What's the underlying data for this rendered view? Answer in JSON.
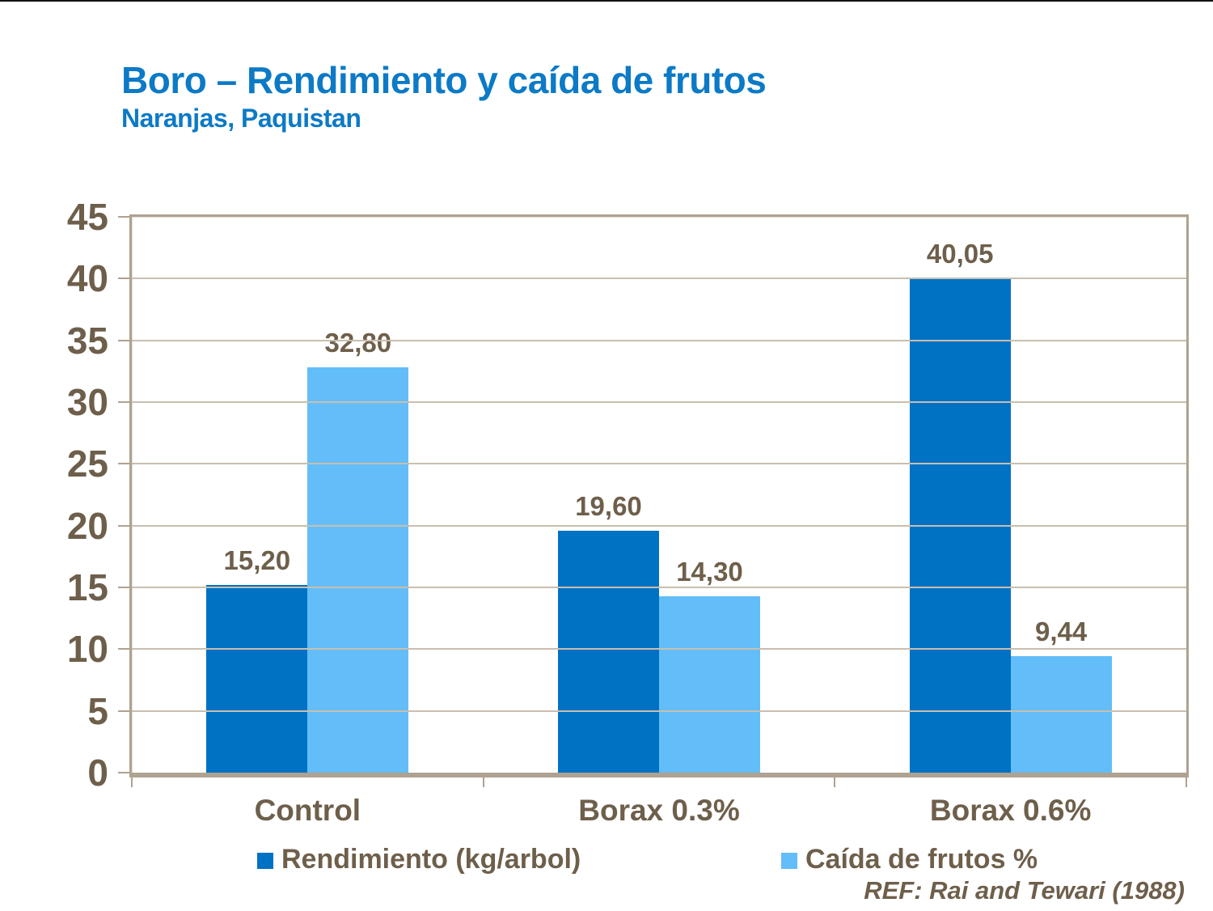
{
  "header": {
    "title": "Boro – Rendimiento y caída de frutos",
    "subtitle": "Naranjas, Paquistan"
  },
  "footer": {
    "reference": "REF: Rai and Tewari (1988)"
  },
  "colors": {
    "title_blue": "#0c7ac6",
    "series1_dark_blue": "#0072c4",
    "series2_light_blue": "#63bdf8",
    "text_brown": "#6e5f4b",
    "axis_line": "#afa291",
    "gridline": "#c9beaf",
    "top_rule": "#111111"
  },
  "chart_data": {
    "type": "bar",
    "title": "",
    "xlabel": "",
    "ylabel": "",
    "categories": [
      "Control",
      "Borax 0.3%",
      "Borax 0.6%"
    ],
    "series": [
      {
        "name": "Rendimiento (kg/arbol)",
        "color": "#0072c4",
        "values": [
          15.2,
          19.6,
          40.05
        ],
        "value_labels": [
          "15,20",
          "19,60",
          "40,05"
        ]
      },
      {
        "name": "Caída de frutos %",
        "color": "#63bdf8",
        "values": [
          32.8,
          14.3,
          9.44
        ],
        "value_labels": [
          "32,80",
          "14,30",
          "9,44"
        ]
      }
    ],
    "ylim": [
      0,
      45
    ],
    "ytick_step": 5,
    "ytick_labels": [
      "0",
      "5",
      "10",
      "15",
      "20",
      "25",
      "30",
      "35",
      "40",
      "45"
    ],
    "grid": true,
    "legend_position": "bottom"
  }
}
